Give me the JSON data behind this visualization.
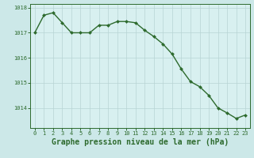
{
  "x": [
    0,
    1,
    2,
    3,
    4,
    5,
    6,
    7,
    8,
    9,
    10,
    11,
    12,
    13,
    14,
    15,
    16,
    17,
    18,
    19,
    20,
    21,
    22,
    23
  ],
  "y": [
    1017.0,
    1017.7,
    1017.8,
    1017.4,
    1017.0,
    1017.0,
    1017.0,
    1017.3,
    1017.3,
    1017.45,
    1017.45,
    1017.4,
    1017.1,
    1016.85,
    1016.55,
    1016.15,
    1015.55,
    1015.05,
    1014.85,
    1014.5,
    1014.0,
    1013.8,
    1013.58,
    1013.72
  ],
  "line_color": "#2d6a2d",
  "marker": "D",
  "marker_size": 2.0,
  "bg_color": "#cce8e8",
  "plot_bg_color": "#d8f0f0",
  "grid_color": "#b8d4d4",
  "axis_color": "#2d6a2d",
  "tick_label_color": "#2d6a2d",
  "xlabel": "Graphe pression niveau de la mer (hPa)",
  "xlabel_color": "#2d6a2d",
  "ylim": [
    1013.2,
    1018.15
  ],
  "yticks": [
    1014,
    1015,
    1016,
    1017,
    1018
  ],
  "xticks": [
    0,
    1,
    2,
    3,
    4,
    5,
    6,
    7,
    8,
    9,
    10,
    11,
    12,
    13,
    14,
    15,
    16,
    17,
    18,
    19,
    20,
    21,
    22,
    23
  ],
  "tick_fontsize": 5.0,
  "xlabel_fontsize": 7.0,
  "line_width": 1.0
}
